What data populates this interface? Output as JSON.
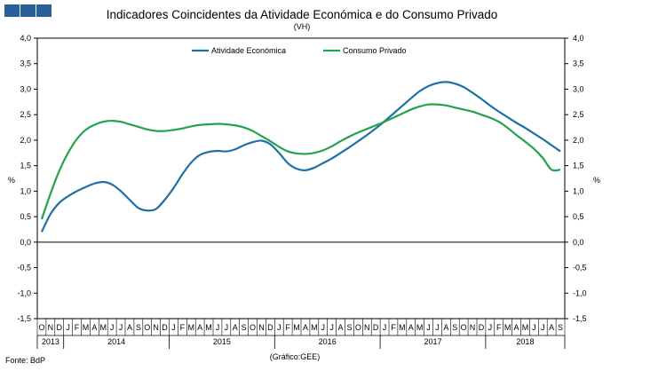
{
  "header": {
    "title": "Indicadores Coincidentes da Atividade Económica e do Consumo Privado",
    "subtitle": "(VH)"
  },
  "footer": {
    "source": "Fonte: BdP",
    "credit": "(Gráfico:GEE)"
  },
  "colors": {
    "logo": "#2a6099",
    "atividade": "#1f6fa8",
    "consumo": "#22a34a"
  },
  "chart_data": {
    "type": "line",
    "ylabel_left": "%",
    "ylabel_right": "%",
    "ylim": [
      -1.5,
      4.0
    ],
    "yticks": [
      "4,0",
      "3,5",
      "3,0",
      "2,5",
      "2,0",
      "1,5",
      "1,0",
      "0,5",
      "0,0",
      "-0,5",
      "-1,0",
      "-1,5"
    ],
    "month_labels": [
      "O",
      "N",
      "D",
      "J",
      "F",
      "M",
      "A",
      "M",
      "J",
      "J",
      "A",
      "S",
      "O",
      "N",
      "D",
      "J",
      "F",
      "M",
      "A",
      "M",
      "J",
      "J",
      "A",
      "S",
      "O",
      "N",
      "D",
      "J",
      "F",
      "M",
      "A",
      "M",
      "J",
      "J",
      "A",
      "S",
      "O",
      "N",
      "D",
      "J",
      "F",
      "M",
      "A",
      "M",
      "J",
      "J",
      "A",
      "S",
      "O",
      "N",
      "D",
      "J",
      "F",
      "M",
      "A",
      "M",
      "J",
      "J",
      "A",
      "S"
    ],
    "years": [
      "2013",
      "2014",
      "2015",
      "2016",
      "2017",
      "2018"
    ],
    "legend_position": "top-center",
    "series": [
      {
        "name": "Atividade Económica",
        "values": [
          0.2,
          0.55,
          0.77,
          0.9,
          1.0,
          1.08,
          1.15,
          1.18,
          1.13,
          1.0,
          0.83,
          0.67,
          0.62,
          0.65,
          0.83,
          1.06,
          1.33,
          1.56,
          1.71,
          1.77,
          1.79,
          1.78,
          1.82,
          1.9,
          1.96,
          1.99,
          1.92,
          1.75,
          1.55,
          1.44,
          1.41,
          1.46,
          1.55,
          1.64,
          1.75,
          1.86,
          1.98,
          2.1,
          2.23,
          2.37,
          2.52,
          2.67,
          2.82,
          2.96,
          3.06,
          3.12,
          3.14,
          3.11,
          3.04,
          2.93,
          2.81,
          2.68,
          2.56,
          2.45,
          2.34,
          2.24,
          2.13,
          2.02,
          1.9,
          1.78
        ]
      },
      {
        "name": "Consumo Privado",
        "values": [
          0.45,
          0.95,
          1.4,
          1.75,
          2.02,
          2.2,
          2.3,
          2.36,
          2.38,
          2.36,
          2.31,
          2.26,
          2.21,
          2.18,
          2.18,
          2.2,
          2.23,
          2.27,
          2.3,
          2.31,
          2.32,
          2.31,
          2.29,
          2.25,
          2.18,
          2.08,
          1.98,
          1.87,
          1.78,
          1.74,
          1.73,
          1.75,
          1.8,
          1.88,
          1.98,
          2.07,
          2.15,
          2.22,
          2.29,
          2.36,
          2.44,
          2.52,
          2.6,
          2.66,
          2.7,
          2.7,
          2.68,
          2.64,
          2.6,
          2.56,
          2.5,
          2.44,
          2.36,
          2.24,
          2.1,
          1.97,
          1.83,
          1.65,
          1.42,
          1.42
        ]
      }
    ]
  }
}
